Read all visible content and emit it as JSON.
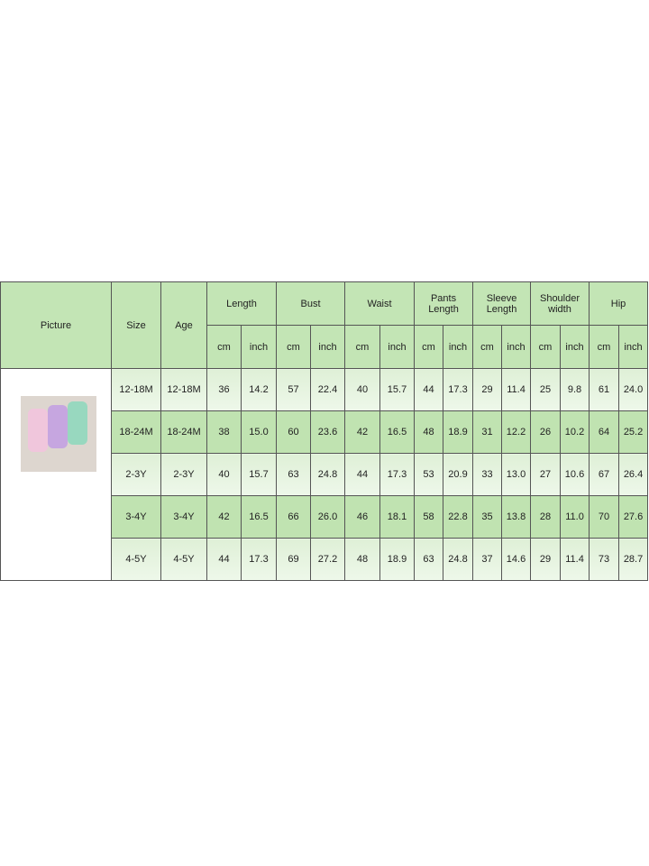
{
  "headers": {
    "picture": "Picture",
    "size": "Size",
    "age": "Age",
    "groups": [
      "Length",
      "Bust",
      "Waist",
      "Pants Length",
      "Sleeve Length",
      "Shoulder width",
      "Hip"
    ],
    "cm": "cm",
    "inch": "inch"
  },
  "rows": [
    [
      "12-18M",
      "12-18M",
      "36",
      "14.2",
      "57",
      "22.4",
      "40",
      "15.7",
      "44",
      "17.3",
      "29",
      "11.4",
      "25",
      "9.8",
      "61",
      "24.0"
    ],
    [
      "18-24M",
      "18-24M",
      "38",
      "15.0",
      "60",
      "23.6",
      "42",
      "16.5",
      "48",
      "18.9",
      "31",
      "12.2",
      "26",
      "10.2",
      "64",
      "25.2"
    ],
    [
      "2-3Y",
      "2-3Y",
      "40",
      "15.7",
      "63",
      "24.8",
      "44",
      "17.3",
      "53",
      "20.9",
      "33",
      "13.0",
      "27",
      "10.6",
      "67",
      "26.4"
    ],
    [
      "3-4Y",
      "3-4Y",
      "42",
      "16.5",
      "66",
      "26.0",
      "46",
      "18.1",
      "58",
      "22.8",
      "35",
      "13.8",
      "28",
      "11.0",
      "70",
      "27.6"
    ],
    [
      "4-5Y",
      "4-5Y",
      "44",
      "17.3",
      "69",
      "27.2",
      "48",
      "18.9",
      "63",
      "24.8",
      "37",
      "14.6",
      "29",
      "11.4",
      "73",
      "28.7"
    ]
  ],
  "colors": {
    "header": "#c3e5b5",
    "dark_row": "#c0e3b1",
    "light_row": "#e6f4e0"
  }
}
